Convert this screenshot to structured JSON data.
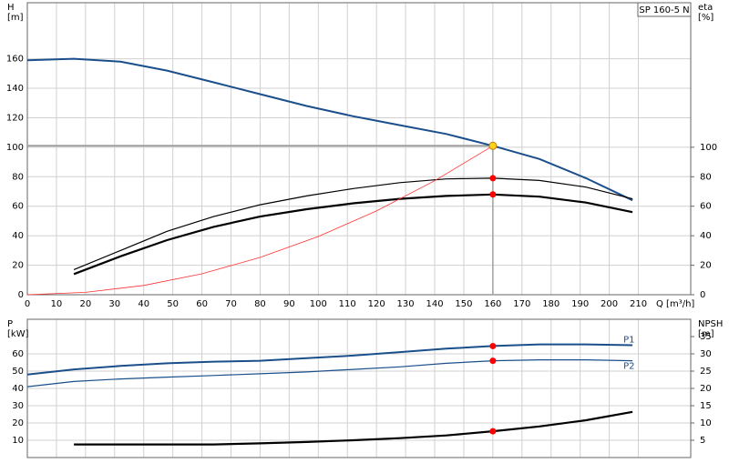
{
  "chart_data": [
    {
      "type": "line",
      "annotation": "SP 160-5 N",
      "ylabel": [
        "H",
        "[m]"
      ],
      "y2label": [
        "eta",
        "[%]"
      ],
      "xlabel": "Q [m³/h]",
      "xlim": [
        0,
        228
      ],
      "xticks": [
        0,
        10,
        20,
        30,
        40,
        50,
        60,
        70,
        80,
        90,
        100,
        110,
        120,
        130,
        140,
        150,
        160,
        170,
        180,
        190,
        200,
        210
      ],
      "ylim": [
        0,
        198
      ],
      "yticks": [
        0,
        20,
        40,
        60,
        80,
        100,
        120,
        140,
        160
      ],
      "y2lim": [
        0,
        198
      ],
      "y2ticks": [
        0,
        20,
        40,
        60,
        80,
        100
      ],
      "grid": true,
      "marker_color": "#ff0000",
      "duty_point": {
        "x": 160,
        "y": 101
      },
      "duty_color": "#ffd21f",
      "series": [
        {
          "color": "#1a4f8b",
          "width": 2,
          "marker": false,
          "x": [
            0,
            16,
            32,
            48,
            64,
            80,
            96,
            112,
            128,
            144,
            160,
            176,
            192,
            208
          ],
          "values": [
            159,
            160,
            158,
            152,
            144,
            136,
            128,
            121,
            115,
            109,
            101,
            92,
            79,
            64
          ]
        },
        {
          "color": "#000000",
          "width": 1.2,
          "marker": true,
          "axis": "y2",
          "x": [
            16,
            32,
            48,
            64,
            80,
            96,
            112,
            128,
            144,
            160,
            176,
            192,
            208
          ],
          "values": [
            17,
            30,
            43,
            53,
            61,
            67,
            72,
            76,
            78.5,
            79,
            77.5,
            73,
            65
          ]
        },
        {
          "color": "#000000",
          "width": 2.2,
          "marker": true,
          "axis": "y2",
          "x": [
            16,
            32,
            48,
            64,
            80,
            96,
            112,
            128,
            144,
            160,
            176,
            192,
            208
          ],
          "values": [
            14,
            26,
            37,
            46,
            53,
            58,
            62,
            65,
            67,
            68,
            66.5,
            62.5,
            56
          ]
        },
        {
          "color": "#ff3030",
          "width": 0.8,
          "marker": false,
          "x": [
            0,
            20,
            40,
            60,
            80,
            100,
            120,
            140,
            160
          ],
          "values": [
            0,
            1.6,
            6.3,
            14.2,
            25.3,
            39.5,
            56.8,
            77.3,
            101
          ]
        }
      ]
    },
    {
      "type": "line",
      "ylabel": [
        "P",
        "[kW]"
      ],
      "y2label": [
        "NPSH",
        "[m]"
      ],
      "xlim": [
        0,
        228
      ],
      "xticks": [
        0,
        10,
        20,
        30,
        40,
        50,
        60,
        70,
        80,
        90,
        100,
        110,
        120,
        130,
        140,
        150,
        160,
        170,
        180,
        190,
        200,
        210
      ],
      "ylim": [
        0,
        80
      ],
      "yticks": [
        10,
        20,
        30,
        40,
        50,
        60
      ],
      "y2lim": [
        0,
        40
      ],
      "y2ticks": [
        5,
        10,
        15,
        20,
        25,
        30,
        35
      ],
      "grid": true,
      "marker_color": "#ff0000",
      "marker_x": 160,
      "series": [
        {
          "name": "P1",
          "color": "#1a4f8b",
          "width": 2,
          "marker": true,
          "x": [
            0,
            16,
            32,
            48,
            64,
            80,
            96,
            112,
            128,
            144,
            160,
            176,
            192,
            208
          ],
          "values": [
            48,
            51,
            53,
            54.5,
            55.5,
            56,
            57.5,
            59,
            61,
            63,
            64.5,
            65.5,
            65.5,
            65
          ]
        },
        {
          "name": "P2",
          "color": "#1a4f8b",
          "width": 1.2,
          "marker": true,
          "x": [
            0,
            16,
            32,
            48,
            64,
            80,
            96,
            112,
            128,
            144,
            160,
            176,
            192,
            208
          ],
          "values": [
            41,
            44,
            45.5,
            46.5,
            47.5,
            48.5,
            49.5,
            51,
            52.5,
            54.5,
            56,
            56.5,
            56.5,
            56
          ]
        },
        {
          "color": "#000000",
          "width": 2.2,
          "marker": true,
          "axis": "y2",
          "x": [
            16,
            32,
            48,
            64,
            80,
            96,
            112,
            128,
            144,
            160,
            176,
            192,
            208
          ],
          "values": [
            3.8,
            3.8,
            3.8,
            3.8,
            4.1,
            4.5,
            5,
            5.6,
            6.4,
            7.6,
            9,
            10.8,
            13.2
          ]
        }
      ]
    }
  ]
}
